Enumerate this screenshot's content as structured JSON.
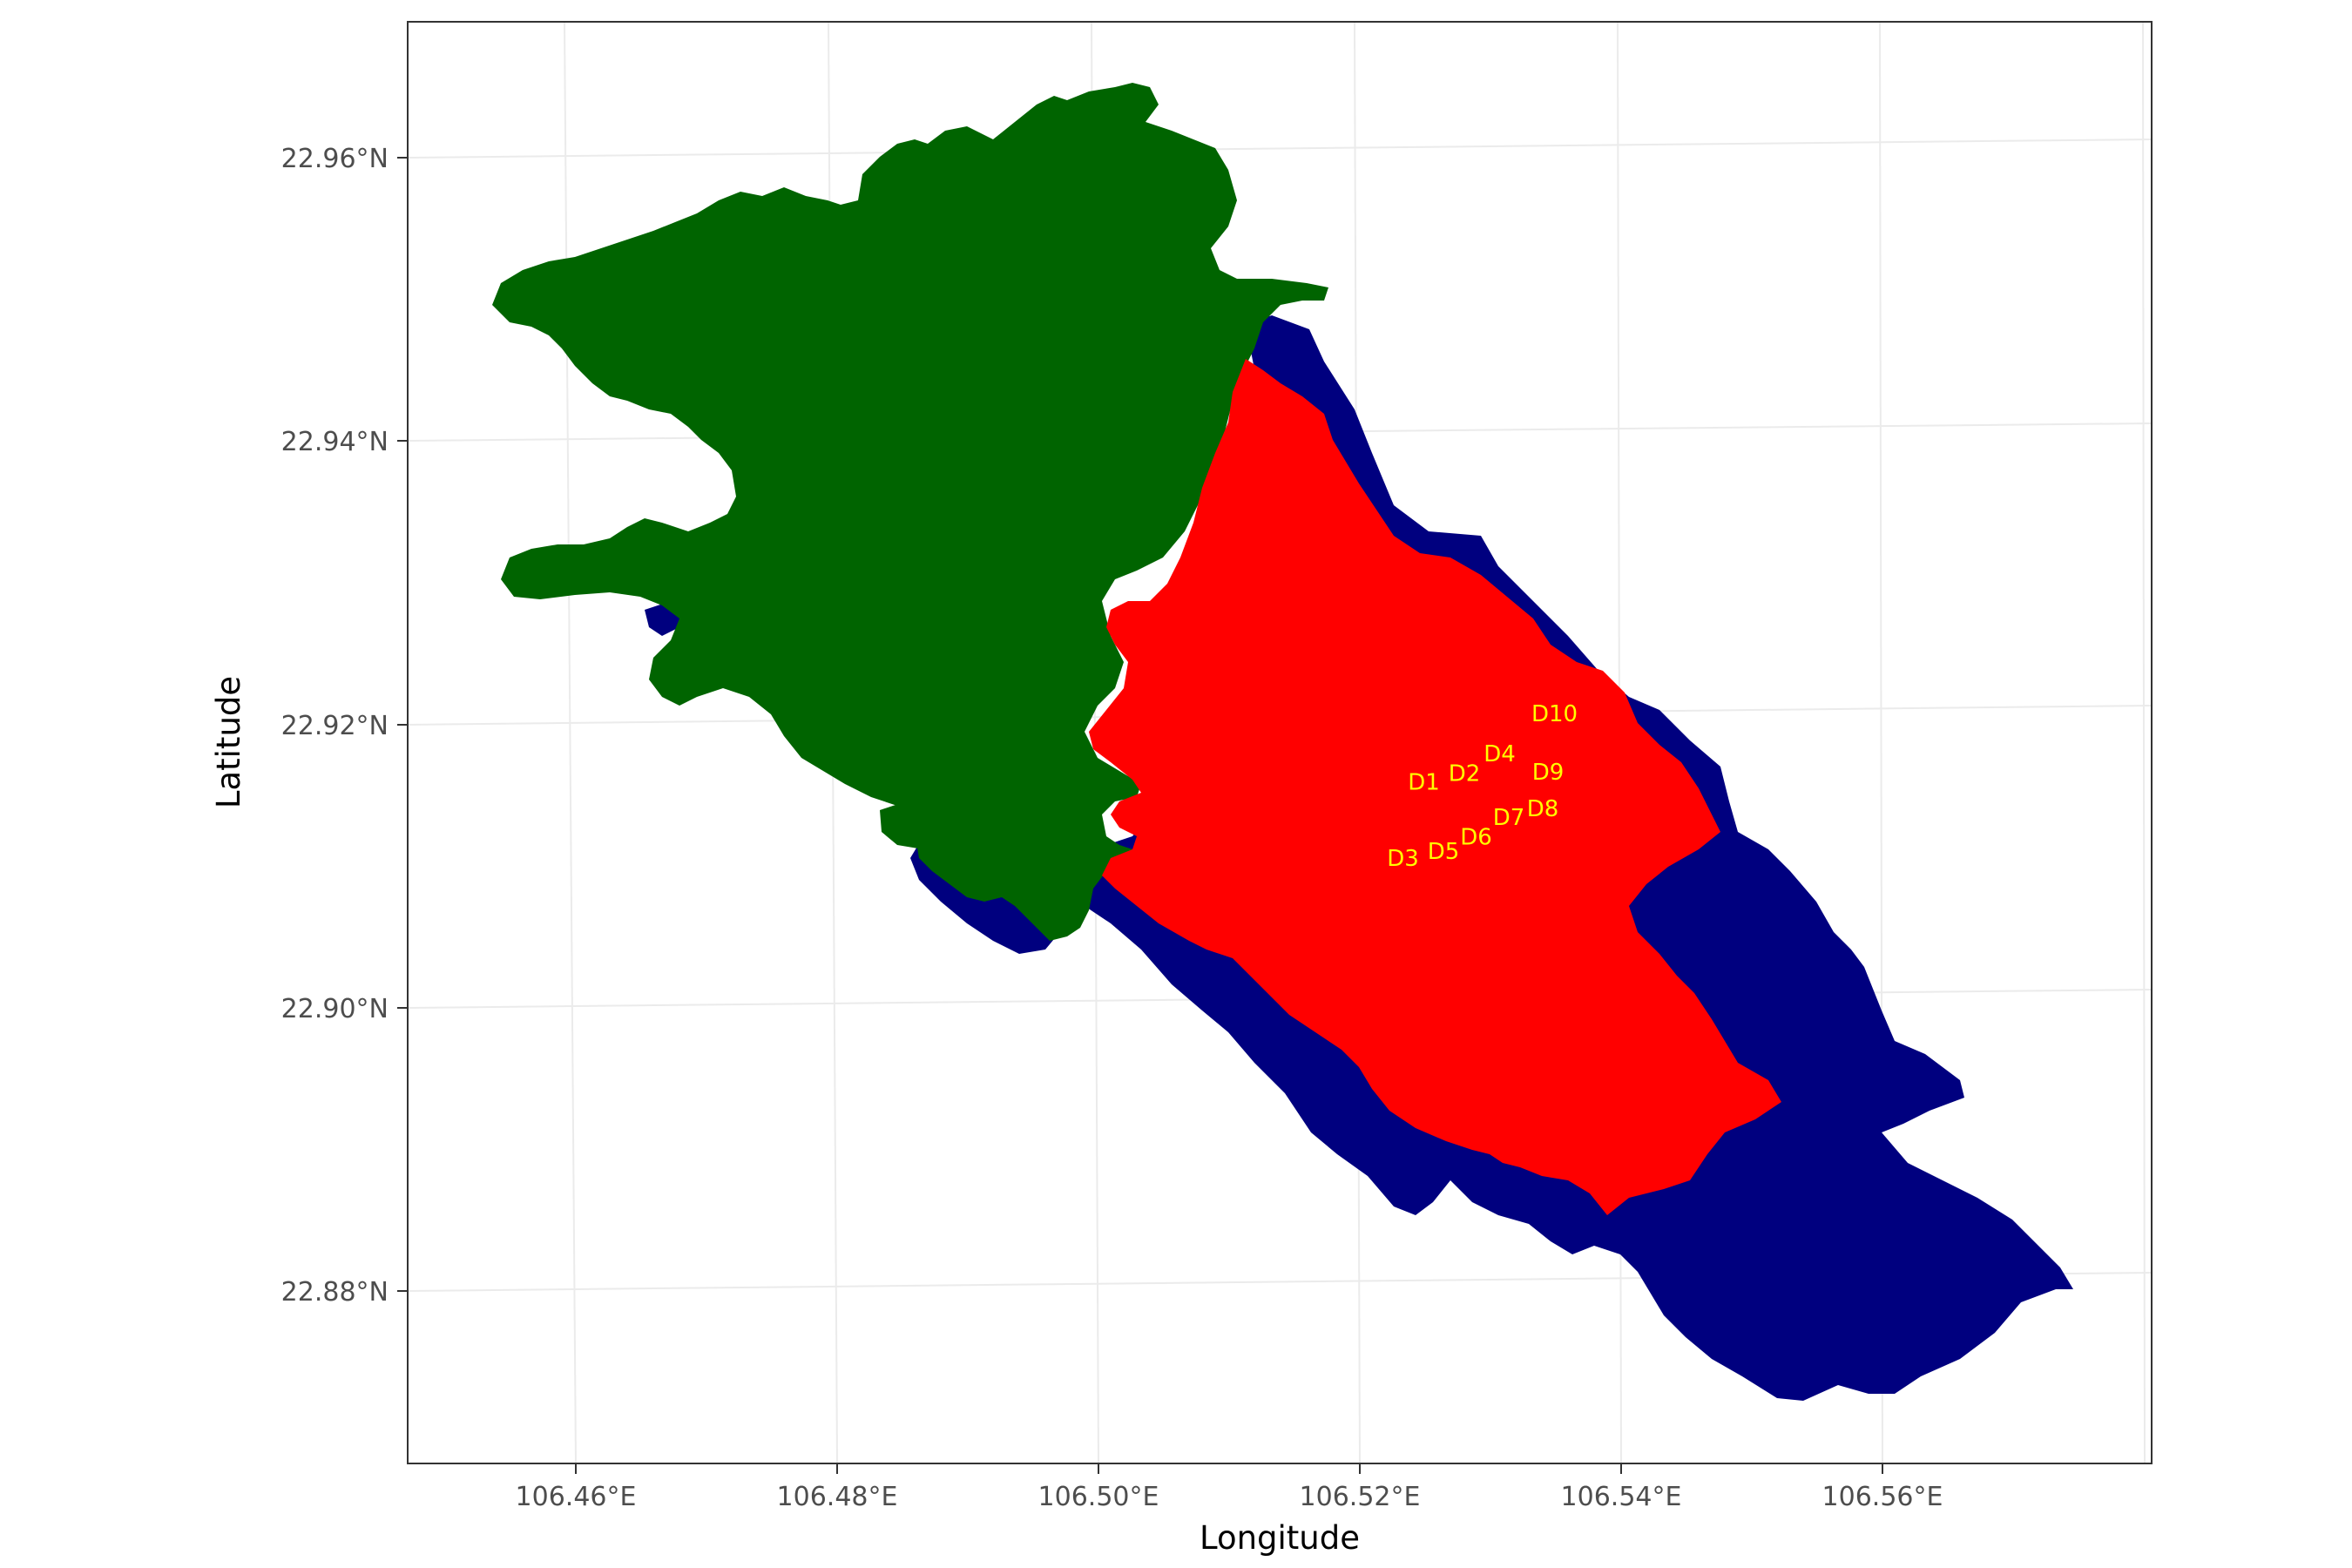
{
  "map": {
    "x_axis_title": "Longitude",
    "y_axis_title": "Latitude",
    "x_ticks": [
      "106.46°E",
      "106.48°E",
      "106.50°E",
      "106.52°E",
      "106.54°E",
      "106.56°E"
    ],
    "y_ticks": [
      "22.96°N",
      "22.94°N",
      "22.92°N",
      "22.90°N",
      "22.88°N"
    ],
    "x_tick_values": [
      106.46,
      106.48,
      106.5,
      106.52,
      106.54,
      106.56
    ],
    "y_tick_values": [
      22.96,
      22.94,
      22.92,
      22.9,
      22.88
    ],
    "lon_range": [
      106.446,
      106.578
    ],
    "lat_range": [
      22.867,
      22.97
    ],
    "grid": true,
    "colors": {
      "outer_region": "#00007f",
      "forest_region": "#006400",
      "core_region": "#ff0000",
      "site_labels": "#ffff00",
      "background": "#ffffff",
      "panel_border": "#333333"
    },
    "sites": [
      {
        "label": "D1",
        "lon": 106.5249,
        "lat": 22.9154
      },
      {
        "label": "D2",
        "lon": 106.528,
        "lat": 22.916
      },
      {
        "label": "D3",
        "lon": 106.5233,
        "lat": 22.91
      },
      {
        "label": "D4",
        "lon": 106.5307,
        "lat": 22.9174
      },
      {
        "label": "D5",
        "lon": 106.5264,
        "lat": 22.9105
      },
      {
        "label": "D6",
        "lon": 106.5289,
        "lat": 22.9115
      },
      {
        "label": "D7",
        "lon": 106.5314,
        "lat": 22.9129
      },
      {
        "label": "D8",
        "lon": 106.534,
        "lat": 22.9135
      },
      {
        "label": "D9",
        "lon": 106.5344,
        "lat": 22.9161
      },
      {
        "label": "D10",
        "lon": 106.5349,
        "lat": 22.9202
      }
    ]
  }
}
